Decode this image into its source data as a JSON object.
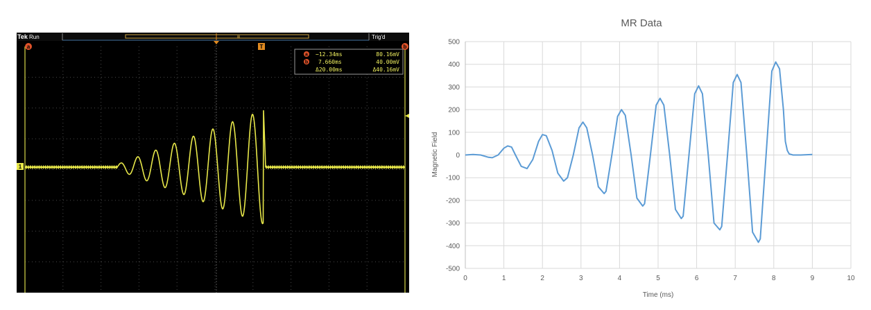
{
  "scope": {
    "brand": "Tek",
    "acq_state": "Run",
    "trigger_status": "Trig'd",
    "cursor_a_marker": "a",
    "cursor_b_marker": "b",
    "trigger_marker": "T",
    "channel_marker": "1",
    "readout": {
      "row_a": {
        "marker": "a",
        "time": "−12.34ms",
        "value": "80.16mV"
      },
      "row_b": {
        "marker": "b",
        "time": "7.660ms",
        "value": "40.00mV"
      },
      "row_delta": {
        "time": "Δ20.00ms",
        "value": "Δ40.16mV"
      }
    },
    "colors": {
      "trace": "#e8e84a",
      "screen_bg": "#000000",
      "marker": "#e0532a",
      "cursor_line": "#d9d94a",
      "grid": "#4a4a4a"
    }
  },
  "chart_data": {
    "type": "line",
    "title": "MR Data",
    "xlabel": "Time (ms)",
    "ylabel": "Magnetic Field",
    "xlim": [
      0,
      10
    ],
    "ylim": [
      -500,
      500
    ],
    "xticks": [
      0,
      1,
      2,
      3,
      4,
      5,
      6,
      7,
      8,
      9,
      10
    ],
    "yticks": [
      -500,
      -400,
      -300,
      -200,
      -100,
      0,
      100,
      200,
      300,
      400,
      500
    ],
    "grid": true,
    "line_color": "#5b9bd5",
    "series": [
      {
        "x": [
          0,
          0.2,
          0.4,
          0.6,
          0.7,
          0.85,
          1.0,
          1.1,
          1.2,
          1.3,
          1.45,
          1.6,
          1.75,
          1.9,
          2.0,
          2.1,
          2.25,
          2.4,
          2.55,
          2.65,
          2.8,
          2.95,
          3.05,
          3.15,
          3.3,
          3.45,
          3.6,
          3.65,
          3.8,
          3.95,
          4.05,
          4.15,
          4.3,
          4.45,
          4.6,
          4.65,
          4.8,
          4.95,
          5.05,
          5.15,
          5.3,
          5.45,
          5.6,
          5.65,
          5.8,
          5.95,
          6.05,
          6.15,
          6.3,
          6.45,
          6.6,
          6.65,
          6.8,
          6.95,
          7.05,
          7.15,
          7.3,
          7.45,
          7.6,
          7.65,
          7.8,
          7.95,
          8.05,
          8.15,
          8.25,
          8.3,
          8.35,
          8.4,
          8.5,
          8.7,
          9.0
        ],
        "y": [
          0,
          2,
          0,
          -10,
          -12,
          0,
          30,
          40,
          35,
          0,
          -50,
          -60,
          -20,
          60,
          90,
          85,
          20,
          -80,
          -115,
          -100,
          0,
          120,
          145,
          120,
          0,
          -140,
          -170,
          -160,
          0,
          170,
          200,
          175,
          0,
          -190,
          -225,
          -215,
          0,
          220,
          250,
          220,
          0,
          -240,
          -280,
          -270,
          0,
          270,
          305,
          270,
          0,
          -300,
          -330,
          -315,
          0,
          320,
          355,
          320,
          0,
          -340,
          -385,
          -370,
          0,
          370,
          410,
          380,
          200,
          60,
          20,
          5,
          0,
          0,
          2
        ]
      }
    ]
  }
}
